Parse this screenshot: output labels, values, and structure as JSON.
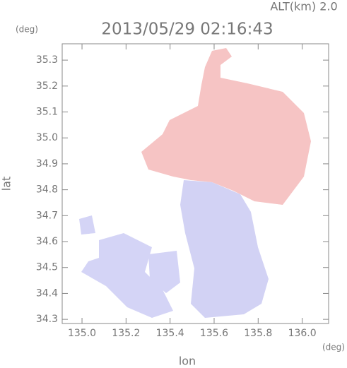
{
  "chart_data": {
    "type": "map",
    "title": "2013/05/29 02:16:43",
    "annotation": "ALT(km) 2.0",
    "x_label": "lon",
    "x_unit": "(deg)",
    "y_label": "lat",
    "y_unit": "(deg)",
    "xlim": [
      134.91,
      136.12
    ],
    "ylim": [
      34.284,
      35.363
    ],
    "xticks": [
      {
        "value": 135,
        "label": "135.0"
      },
      135.2,
      135.4,
      135.6,
      135.8,
      {
        "value": 136,
        "label": "136.0"
      }
    ],
    "yticks": [
      34.3,
      34.4,
      34.5,
      34.6,
      34.7,
      34.8,
      34.9,
      {
        "value": 35,
        "label": "35.0"
      },
      35.1,
      35.2,
      35.3
    ]
  }
}
